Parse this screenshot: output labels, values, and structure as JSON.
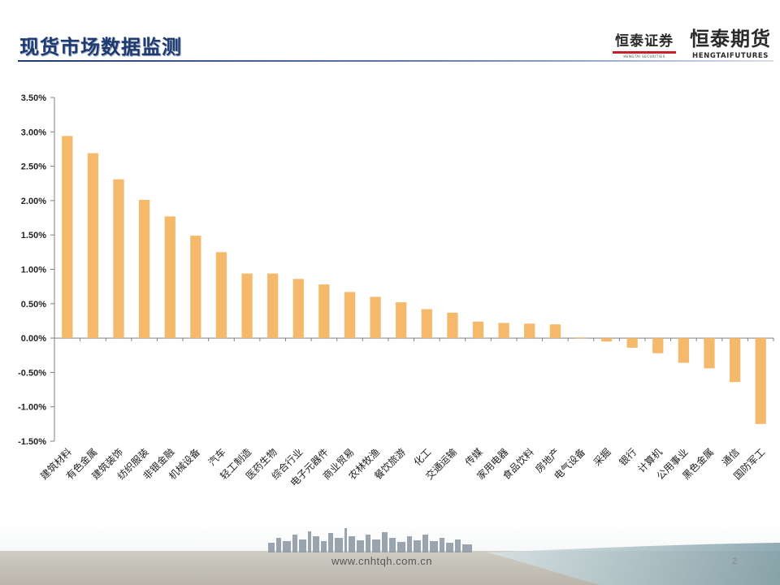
{
  "page": {
    "title": "现货市场数据监测",
    "page_number": "2",
    "url": "www.cnhtqh.com.cn"
  },
  "logos": {
    "securities_cn": "恒泰证券",
    "securities_en": "HENGTAI SECURITIES",
    "futures_cn": "恒泰期货",
    "futures_en": "HENGTAIFUTURES"
  },
  "colors": {
    "bar": "#f5b96b",
    "title": "#1f3a6e",
    "logo_red": "#c4232b"
  },
  "chart_data": {
    "type": "bar",
    "title": "",
    "xlabel": "",
    "ylabel": "",
    "categories": [
      "建筑材料",
      "有色金属",
      "建筑装饰",
      "纺织服装",
      "非银金融",
      "机械设备",
      "汽车",
      "轻工制造",
      "医药生物",
      "综合行业",
      "电子元器件",
      "商业贸易",
      "农林牧渔",
      "餐饮旅游",
      "化工",
      "交通运输",
      "传媒",
      "家用电器",
      "食品饮料",
      "房地产",
      "电气设备",
      "采掘",
      "银行",
      "计算机",
      "公用事业",
      "黑色金属",
      "通信",
      "国防军工"
    ],
    "values": [
      2.94,
      2.69,
      2.31,
      2.01,
      1.77,
      1.49,
      1.25,
      0.94,
      0.94,
      0.86,
      0.78,
      0.67,
      0.6,
      0.52,
      0.42,
      0.37,
      0.24,
      0.22,
      0.21,
      0.2,
      0.01,
      -0.05,
      -0.14,
      -0.22,
      -0.36,
      -0.44,
      -0.64,
      -1.25
    ],
    "ylim": [
      -1.5,
      3.5
    ],
    "yticks": [
      -1.5,
      -1.0,
      -0.5,
      0.0,
      0.5,
      1.0,
      1.5,
      2.0,
      2.5,
      3.0,
      3.5
    ],
    "ytick_labels": [
      "-1.50%",
      "-1.00%",
      "-0.50%",
      "0.00%",
      "0.50%",
      "1.00%",
      "1.50%",
      "2.00%",
      "2.50%",
      "3.00%",
      "3.50%"
    ],
    "grid": false,
    "legend": "none"
  }
}
